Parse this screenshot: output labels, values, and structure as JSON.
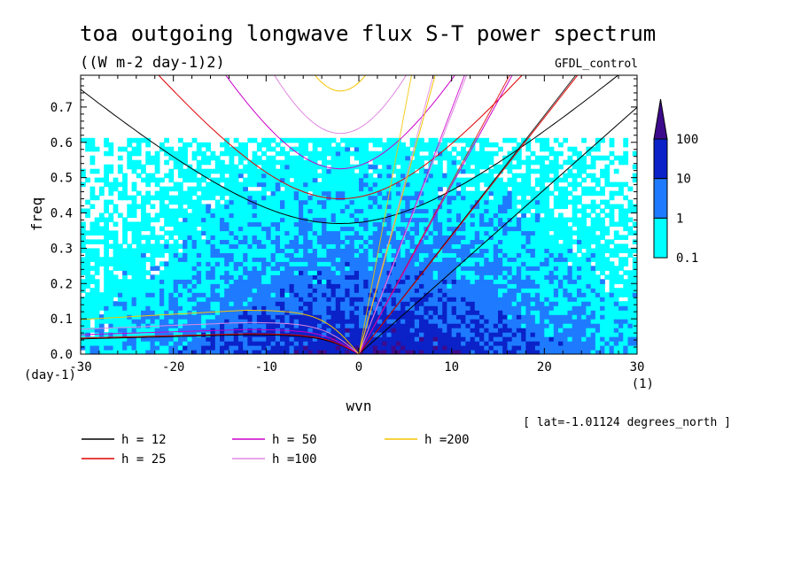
{
  "chart_data": {
    "type": "heatmap",
    "title": "toa outgoing longwave flux S-T power spectrum",
    "subtitle": "((W m-2 day-1)2)",
    "run_label": "GFDL_control",
    "xlabel": "wvn",
    "ylabel": "freq",
    "x_unit": "(1)",
    "y_unit": "(day-1)",
    "xlim": [
      -30,
      30
    ],
    "ylim": [
      0,
      0.79
    ],
    "xticks": [
      "-30",
      "-20",
      "-10",
      "0",
      "10",
      "20",
      "30"
    ],
    "yticks": [
      "0.0",
      "0.1",
      "0.2",
      "0.3",
      "0.4",
      "0.5",
      "0.6",
      "0.7"
    ],
    "colorbar": {
      "levels": [
        "0.1",
        "1",
        "10",
        "100"
      ],
      "colors": [
        "#00ffff",
        "#1e7bff",
        "#0a22c8",
        "#3d0a8c"
      ]
    },
    "annotation": "[ lat=-1.01124 degrees_north ]",
    "legend": [
      {
        "label": "h = 12",
        "color": "#000000",
        "h": 12
      },
      {
        "label": "h = 25",
        "color": "#e00000",
        "h": 25
      },
      {
        "label": "h = 50",
        "color": "#cc00cc",
        "h": 50
      },
      {
        "label": "h =100",
        "color": "#e088e0",
        "h": 100
      },
      {
        "label": "h =200",
        "color": "#f5c400",
        "h": 200
      }
    ],
    "dispersion_curves": {
      "equivalent_depths_m": [
        12,
        25,
        50,
        100,
        200
      ],
      "inertio_gravity_min_freq": [
        0.37,
        0.44,
        0.525,
        0.625,
        0.745
      ],
      "kelvin_slope_freq_per_wvn": [
        0.0233,
        0.0335,
        0.0478,
        0.068,
        0.096
      ],
      "rossby_asymptote_freq": [
        0.055,
        0.058,
        0.07,
        0.09,
        0.125
      ]
    }
  }
}
